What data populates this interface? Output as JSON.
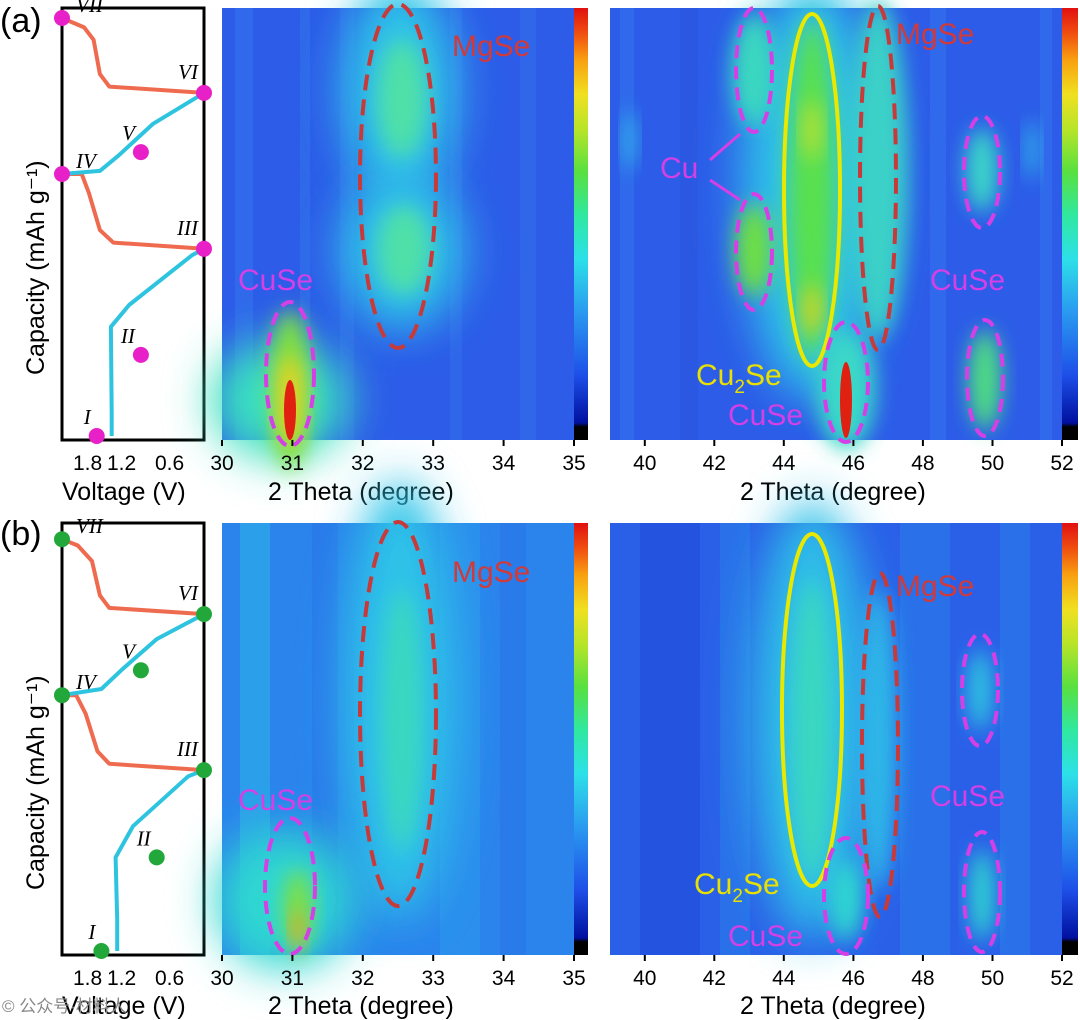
{
  "chart_data": [
    {
      "panel": "(a)",
      "voltage_profile": {
        "type": "line",
        "xlabel": "Voltage (V)",
        "ylabel": "Capacity (mAh g⁻¹)",
        "x_ticks": [
          "1.8",
          "1.2",
          "0.6"
        ],
        "x_tick_values": [
          1.8,
          1.2,
          0.6
        ],
        "xlim": [
          2.1,
          0.3
        ],
        "ylim": [
          0,
          100
        ],
        "marker_color": "#e820c8",
        "discharge_color": "#2ec4e0",
        "charge_color": "#ef6b4f",
        "segments": [
          {
            "kind": "discharge",
            "points": [
              [
                1.47,
                0
              ],
              [
                1.47,
                7
              ],
              [
                1.48,
                35
              ],
              [
                1.25,
                42
              ],
              [
                0.45,
                58
              ],
              [
                0.3,
                60
              ]
            ]
          },
          {
            "kind": "charge",
            "points": [
              [
                0.3,
                60
              ],
              [
                1.45,
                62
              ],
              [
                1.62,
                66
              ],
              [
                1.76,
                78
              ],
              [
                1.85,
                84
              ],
              [
                2.1,
                84
              ]
            ]
          },
          {
            "kind": "discharge",
            "points": [
              [
                2.1,
                84
              ],
              [
                1.62,
                85
              ],
              [
                1.38,
                90
              ],
              [
                0.95,
                100
              ],
              [
                0.3,
                110
              ]
            ]
          },
          {
            "kind": "charge",
            "points": [
              [
                0.3,
                110
              ],
              [
                1.5,
                112
              ],
              [
                1.62,
                116
              ],
              [
                1.7,
                127
              ],
              [
                1.82,
                131
              ],
              [
                2.1,
                134
              ]
            ]
          }
        ],
        "stages": [
          {
            "label": "I",
            "x": 1.66,
            "y": 0
          },
          {
            "label": "II",
            "x": 1.1,
            "y": 26
          },
          {
            "label": "III",
            "x": 0.3,
            "y": 60
          },
          {
            "label": "IV",
            "x": 2.1,
            "y": 84
          },
          {
            "label": "V",
            "x": 1.1,
            "y": 91
          },
          {
            "label": "VI",
            "x": 0.3,
            "y": 110
          },
          {
            "label": "VII",
            "x": 2.1,
            "y": 134
          }
        ]
      },
      "xrd_contour_left": {
        "type": "heatmap",
        "xlabel": "2 Theta (degree)",
        "xlim": [
          30,
          35
        ],
        "x_ticks": [
          30,
          31,
          32,
          33,
          34,
          35
        ],
        "peaks": [
          {
            "two_theta": 30.95,
            "intensity": 1.0,
            "phase": "CuSe"
          },
          {
            "two_theta": 32.55,
            "intensity": 0.7,
            "phase": "MgSe"
          }
        ],
        "annotations": [
          {
            "text": "MgSe",
            "color": "#d03a3a",
            "two_theta": 32.55
          },
          {
            "text": "CuSe",
            "color": "#d540e6",
            "two_theta": 30.95
          }
        ]
      },
      "xrd_contour_right": {
        "type": "heatmap",
        "xlabel": "2 Theta (degree)",
        "xlim": [
          39,
          52
        ],
        "x_ticks": [
          40,
          42,
          44,
          46,
          48,
          50,
          52
        ],
        "peaks": [
          {
            "two_theta": 43.2,
            "intensity": 0.55,
            "phase": "Cu"
          },
          {
            "two_theta": 44.8,
            "intensity": 0.85,
            "phase": "Cu2Se"
          },
          {
            "two_theta": 45.8,
            "intensity": 1.0,
            "phase": "CuSe"
          },
          {
            "two_theta": 46.8,
            "intensity": 0.6,
            "phase": "MgSe"
          },
          {
            "two_theta": 49.8,
            "intensity": 0.65,
            "phase": "CuSe"
          }
        ],
        "annotations": [
          {
            "text": "MgSe",
            "color": "#d03a3a"
          },
          {
            "text": "Cu",
            "color": "#d540e6"
          },
          {
            "text": "CuSe",
            "color": "#d540e6"
          },
          {
            "text": "Cu",
            "sub": "2",
            "tail": "Se",
            "color": "#e8e000"
          },
          {
            "text": "CuSe",
            "color": "#d540e6"
          }
        ]
      }
    },
    {
      "panel": "(b)",
      "voltage_profile": {
        "type": "line",
        "xlabel": "Voltage (V)",
        "ylabel": "Capacity (mAh g⁻¹)",
        "x_ticks": [
          "1.8",
          "1.2",
          "0.6"
        ],
        "x_tick_values": [
          1.8,
          1.2,
          0.6
        ],
        "xlim": [
          2.1,
          0.3
        ],
        "ylim": [
          0,
          100
        ],
        "marker_color": "#22a83a",
        "discharge_color": "#2ec4e0",
        "charge_color": "#ef6b4f",
        "segments": [
          {
            "kind": "discharge",
            "points": [
              [
                1.4,
                0
              ],
              [
                1.4,
                10
              ],
              [
                1.42,
                30
              ],
              [
                1.2,
                40
              ],
              [
                0.5,
                56
              ],
              [
                0.3,
                58
              ]
            ]
          },
          {
            "kind": "charge",
            "points": [
              [
                0.3,
                58
              ],
              [
                1.5,
                60
              ],
              [
                1.65,
                64
              ],
              [
                1.8,
                76
              ],
              [
                1.92,
                82
              ],
              [
                2.1,
                82
              ]
            ]
          },
          {
            "kind": "discharge",
            "points": [
              [
                2.1,
                82
              ],
              [
                1.6,
                84
              ],
              [
                1.35,
                90
              ],
              [
                0.9,
                100
              ],
              [
                0.3,
                108
              ]
            ]
          },
          {
            "kind": "charge",
            "points": [
              [
                0.3,
                108
              ],
              [
                1.5,
                110
              ],
              [
                1.62,
                114
              ],
              [
                1.72,
                125
              ],
              [
                1.9,
                130
              ],
              [
                2.1,
                132
              ]
            ]
          }
        ],
        "stages": [
          {
            "label": "I",
            "x": 1.6,
            "y": 0
          },
          {
            "label": "II",
            "x": 0.9,
            "y": 30
          },
          {
            "label": "III",
            "x": 0.3,
            "y": 58
          },
          {
            "label": "IV",
            "x": 2.1,
            "y": 82
          },
          {
            "label": "V",
            "x": 1.1,
            "y": 90
          },
          {
            "label": "VI",
            "x": 0.3,
            "y": 108
          },
          {
            "label": "VII",
            "x": 2.1,
            "y": 132
          }
        ]
      },
      "xrd_contour_left": {
        "type": "heatmap",
        "xlabel": "2 Theta (degree)",
        "xlim": [
          30,
          35
        ],
        "x_ticks": [
          30,
          31,
          32,
          33,
          34,
          35
        ],
        "peaks": [
          {
            "two_theta": 31.05,
            "intensity": 0.9,
            "phase": "CuSe"
          },
          {
            "two_theta": 32.6,
            "intensity": 0.45,
            "phase": "MgSe"
          }
        ],
        "annotations": [
          {
            "text": "MgSe",
            "color": "#d03a3a"
          },
          {
            "text": "CuSe",
            "color": "#d540e6"
          }
        ]
      },
      "xrd_contour_right": {
        "type": "heatmap",
        "xlabel": "2 Theta (degree)",
        "xlim": [
          39,
          52
        ],
        "x_ticks": [
          40,
          42,
          44,
          46,
          48,
          50,
          52
        ],
        "peaks": [
          {
            "two_theta": 44.8,
            "intensity": 0.6,
            "phase": "Cu2Se"
          },
          {
            "two_theta": 45.9,
            "intensity": 0.4,
            "phase": "CuSe"
          },
          {
            "two_theta": 46.8,
            "intensity": 0.3,
            "phase": "MgSe"
          },
          {
            "two_theta": 49.8,
            "intensity": 0.4,
            "phase": "CuSe"
          }
        ],
        "annotations": [
          {
            "text": "MgSe",
            "color": "#d03a3a"
          },
          {
            "text": "CuSe",
            "color": "#d540e6"
          },
          {
            "text": "Cu",
            "sub": "2",
            "tail": "Se",
            "color": "#e8e000"
          },
          {
            "text": "CuSe",
            "color": "#d540e6"
          }
        ]
      }
    }
  ],
  "colors": {
    "background_blue": "#2c5ce8",
    "magenta_outline": "#d540e6",
    "red_outline": "#c83a3a",
    "yellow_outline": "#e8e800"
  },
  "colorbar": [
    "#000000",
    "#0010a0",
    "#1e4fe8",
    "#2a9cf0",
    "#2de0e8",
    "#30e8a0",
    "#58e040",
    "#b8e428",
    "#f0e020",
    "#f8a010",
    "#f05010",
    "#e01010"
  ],
  "watermark": "© 公众号·材料人"
}
